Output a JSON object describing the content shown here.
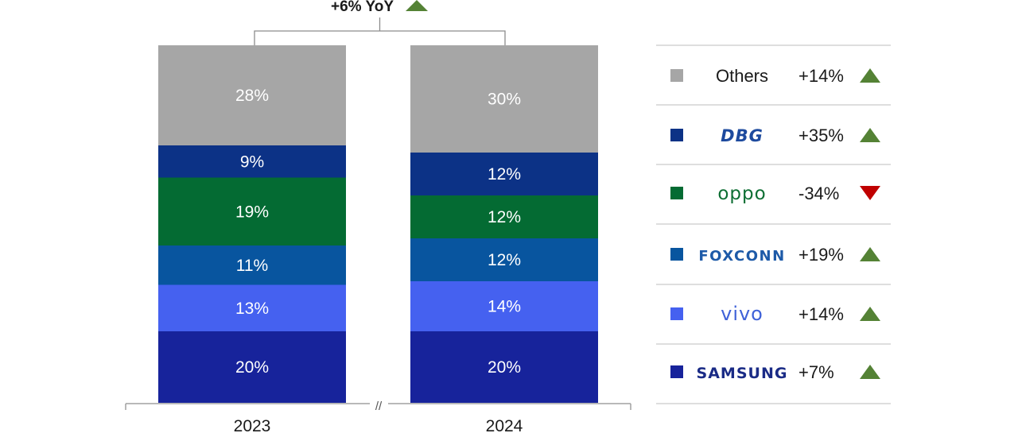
{
  "chart_data": {
    "type": "bar",
    "stacked": true,
    "percent": true,
    "categories": [
      "2023",
      "2024"
    ],
    "series": [
      {
        "name": "SAMSUNG",
        "values": [
          20,
          20
        ],
        "color": "#17239b",
        "logo": "samsung-logo",
        "change": "+7%",
        "trend": "up"
      },
      {
        "name": "vivo",
        "values": [
          13,
          14
        ],
        "color": "#4561f0",
        "logo": "vivo-logo",
        "change": "+14%",
        "trend": "up"
      },
      {
        "name": "FOXCONN",
        "values": [
          11,
          12
        ],
        "color": "#08559f",
        "logo": "foxconn-logo",
        "change": "+19%",
        "trend": "up"
      },
      {
        "name": "oppo",
        "values": [
          19,
          12
        ],
        "color": "#046b33",
        "logo": "oppo-logo",
        "change": "-34%",
        "trend": "down"
      },
      {
        "name": "DBG",
        "values": [
          9,
          12
        ],
        "color": "#0c3286",
        "logo": "dbg-logo",
        "change": "+35%",
        "trend": "up"
      },
      {
        "name": "Others",
        "values": [
          28,
          30
        ],
        "color": "#a6a6a6",
        "logo": "",
        "change": "+14%",
        "trend": "up"
      }
    ],
    "data_labels": {
      "2023": [
        "20%",
        "13%",
        "11%",
        "19%",
        "9%",
        "28%"
      ],
      "2024": [
        "20%",
        "14%",
        "12%",
        "12%",
        "12%",
        "30%"
      ]
    },
    "annotation": "+6% YoY",
    "annotation_trend": "up",
    "axis_break": "//",
    "legend_placement": "right",
    "grid": false,
    "title": "",
    "xlabel": "",
    "ylabel": "",
    "colors": {
      "up": "#548235",
      "down": "#c00000",
      "axis": "#a0a0a0",
      "label": "#ffffff"
    }
  }
}
